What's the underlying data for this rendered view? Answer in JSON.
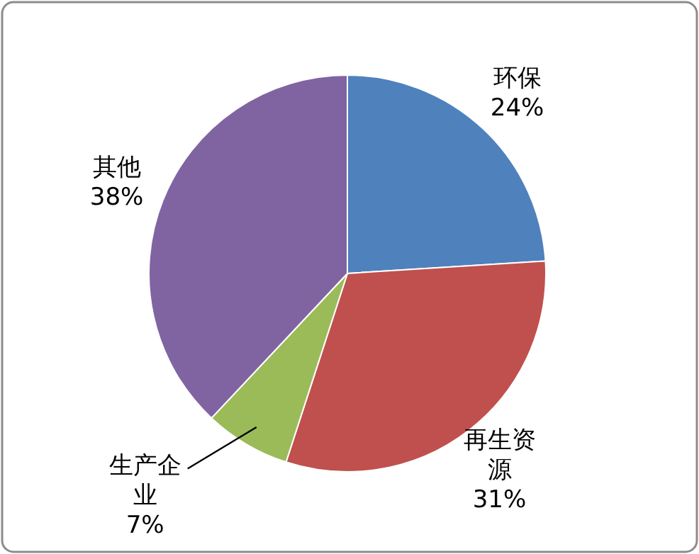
{
  "chart_data": {
    "type": "pie",
    "categories": [
      "环保",
      "再生资源",
      "生产企业",
      "其他"
    ],
    "values": [
      24,
      31,
      7,
      38
    ],
    "colors": [
      "#4f81bd",
      "#c0504d",
      "#9bbb59",
      "#8064a2"
    ],
    "value_labels": [
      "24%",
      "31%",
      "7%",
      "38%"
    ],
    "legend": false
  }
}
